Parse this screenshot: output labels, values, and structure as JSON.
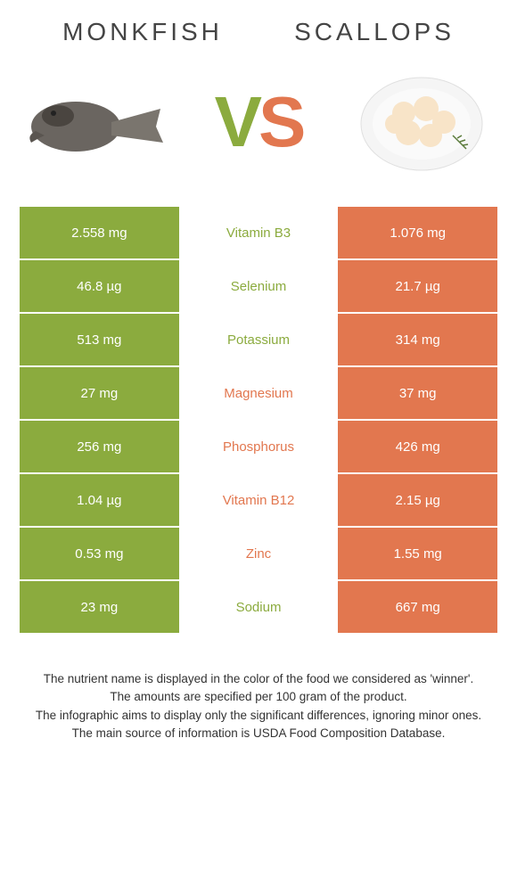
{
  "header": {
    "left_title": "MONKFISH",
    "right_title": "SCALLOPS",
    "vs_v": "V",
    "vs_s": "S"
  },
  "colors": {
    "green": "#8bab3e",
    "orange": "#e2774f"
  },
  "rows": [
    {
      "left": "2.558 mg",
      "mid": "Vitamin B3",
      "right": "1.076 mg",
      "winner": "left"
    },
    {
      "left": "46.8 µg",
      "mid": "Selenium",
      "right": "21.7 µg",
      "winner": "left"
    },
    {
      "left": "513 mg",
      "mid": "Potassium",
      "right": "314 mg",
      "winner": "left"
    },
    {
      "left": "27 mg",
      "mid": "Magnesium",
      "right": "37 mg",
      "winner": "right"
    },
    {
      "left": "256 mg",
      "mid": "Phosphorus",
      "right": "426 mg",
      "winner": "right"
    },
    {
      "left": "1.04 µg",
      "mid": "Vitamin B12",
      "right": "2.15 µg",
      "winner": "right"
    },
    {
      "left": "0.53 mg",
      "mid": "Zinc",
      "right": "1.55 mg",
      "winner": "right"
    },
    {
      "left": "23 mg",
      "mid": "Sodium",
      "right": "667 mg",
      "winner": "left"
    }
  ],
  "footer": {
    "l1": "The nutrient name is displayed in the color of the food we considered as 'winner'.",
    "l2": "The amounts are specified per 100 gram of the product.",
    "l3": "The infographic aims to display only the significant differences, ignoring minor ones.",
    "l4": "The main source of information is USDA Food Composition Database."
  }
}
